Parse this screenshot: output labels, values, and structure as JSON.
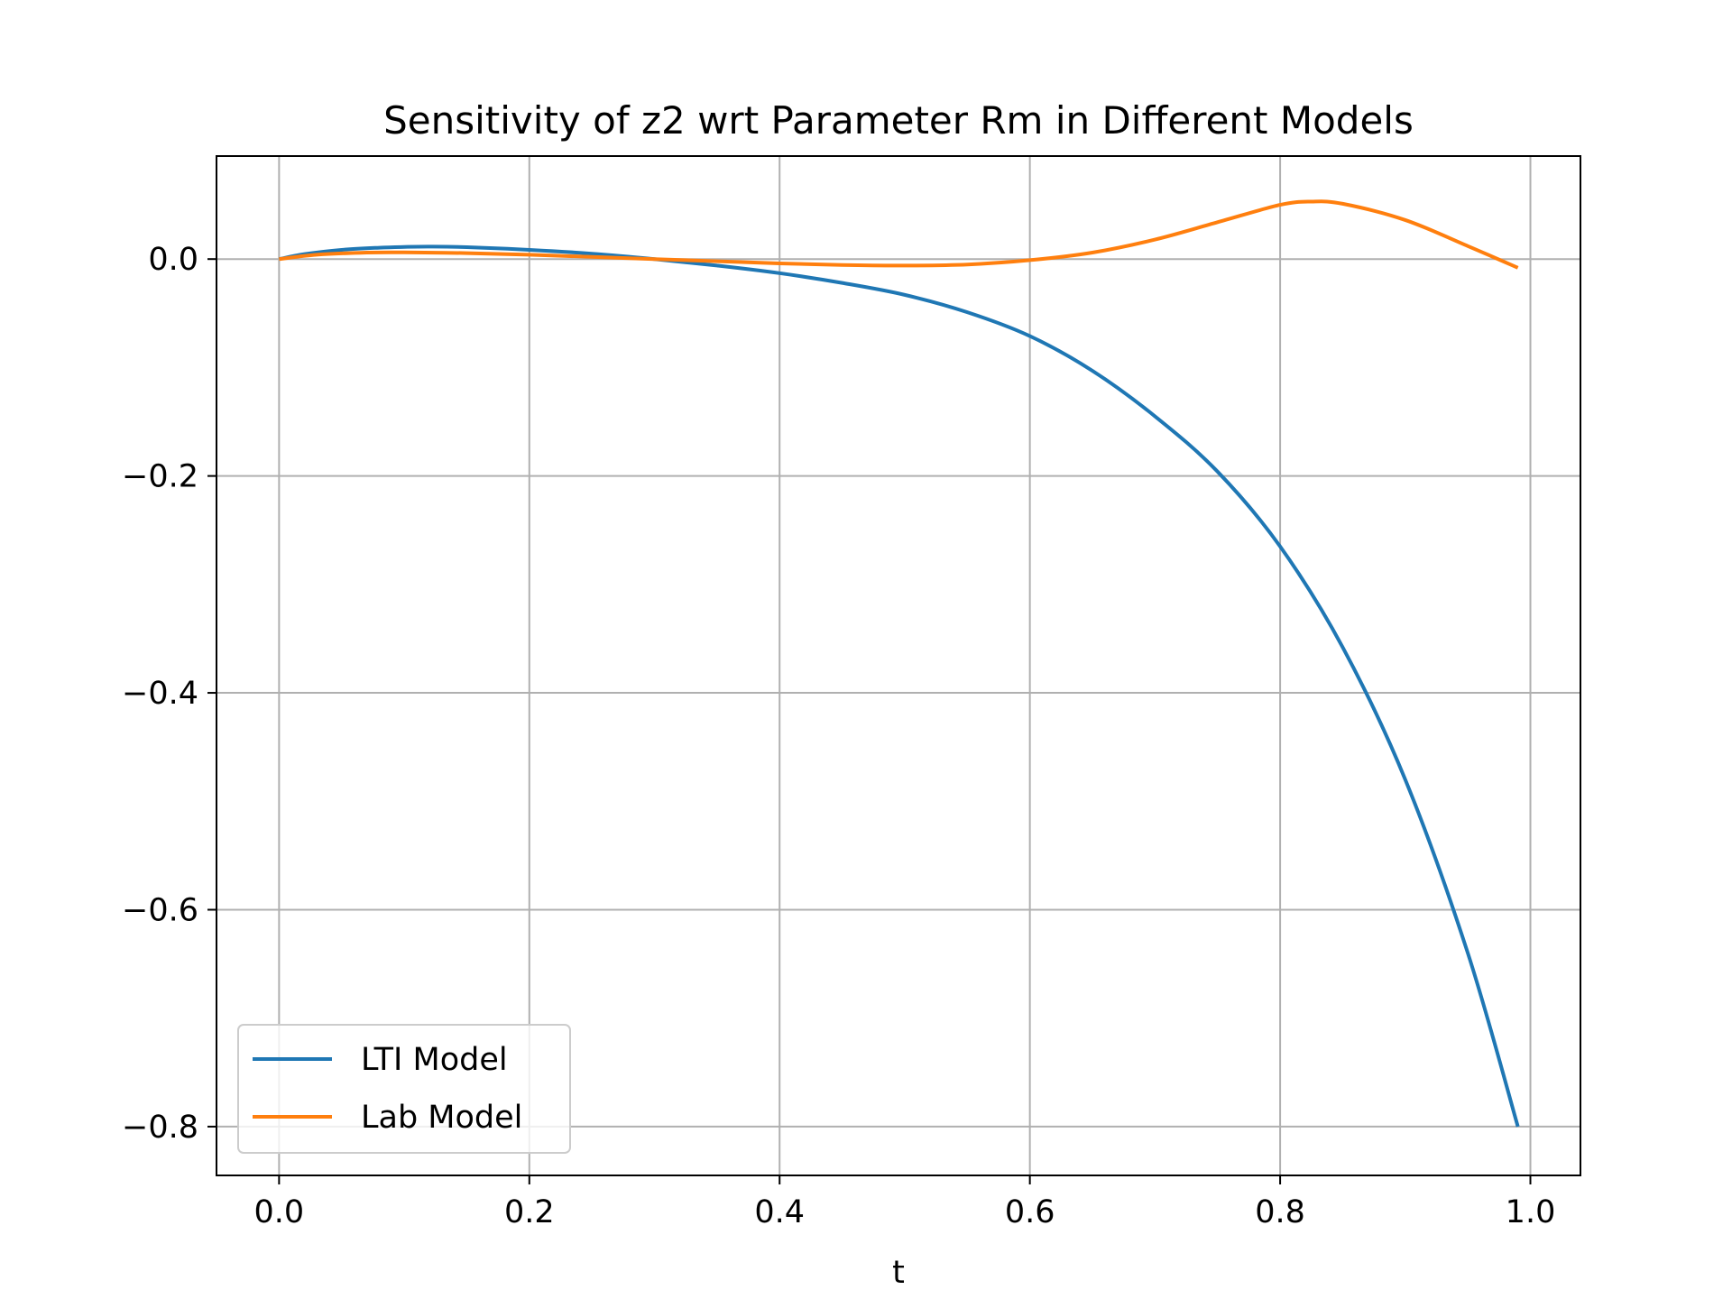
{
  "chart_data": {
    "type": "line",
    "title": "Sensitivity of z2 wrt Parameter Rm in Different Models",
    "xlabel": "t",
    "ylabel": "",
    "xlim": [
      -0.05,
      1.04
    ],
    "ylim": [
      -0.845,
      0.095
    ],
    "xticks": [
      0.0,
      0.2,
      0.4,
      0.6,
      0.8,
      1.0
    ],
    "xtick_labels": [
      "0.0",
      "0.2",
      "0.4",
      "0.6",
      "0.8",
      "1.0"
    ],
    "yticks": [
      0.0,
      -0.2,
      -0.4,
      -0.6,
      -0.8
    ],
    "ytick_labels": [
      "0.0",
      "−0.2",
      "−0.4",
      "−0.6",
      "−0.8"
    ],
    "grid": true,
    "legend_position": "lower-left",
    "series": [
      {
        "name": "LTI Model",
        "color": "#1f77b4",
        "x": [
          0.0,
          0.02,
          0.05,
          0.08,
          0.1,
          0.12,
          0.15,
          0.2,
          0.25,
          0.3,
          0.35,
          0.4,
          0.45,
          0.5,
          0.55,
          0.6,
          0.65,
          0.7,
          0.75,
          0.8,
          0.85,
          0.9,
          0.95,
          0.99
        ],
        "y": [
          0.0,
          0.0045,
          0.0085,
          0.0105,
          0.0112,
          0.0115,
          0.011,
          0.0085,
          0.005,
          0.0,
          -0.006,
          -0.013,
          -0.022,
          -0.033,
          -0.049,
          -0.071,
          -0.103,
          -0.145,
          -0.196,
          -0.265,
          -0.358,
          -0.48,
          -0.64,
          -0.8
        ]
      },
      {
        "name": "Lab Model",
        "color": "#ff7f0e",
        "x": [
          0.0,
          0.03,
          0.07,
          0.1,
          0.15,
          0.2,
          0.25,
          0.3,
          0.35,
          0.4,
          0.45,
          0.5,
          0.55,
          0.6,
          0.65,
          0.7,
          0.75,
          0.8,
          0.825,
          0.85,
          0.9,
          0.95,
          0.99
        ],
        "y": [
          0.0,
          0.004,
          0.006,
          0.0062,
          0.0055,
          0.004,
          0.002,
          0.0,
          -0.002,
          -0.004,
          -0.0055,
          -0.006,
          -0.005,
          -0.001,
          0.006,
          0.018,
          0.034,
          0.05,
          0.053,
          0.051,
          0.036,
          0.012,
          -0.008
        ]
      }
    ]
  }
}
